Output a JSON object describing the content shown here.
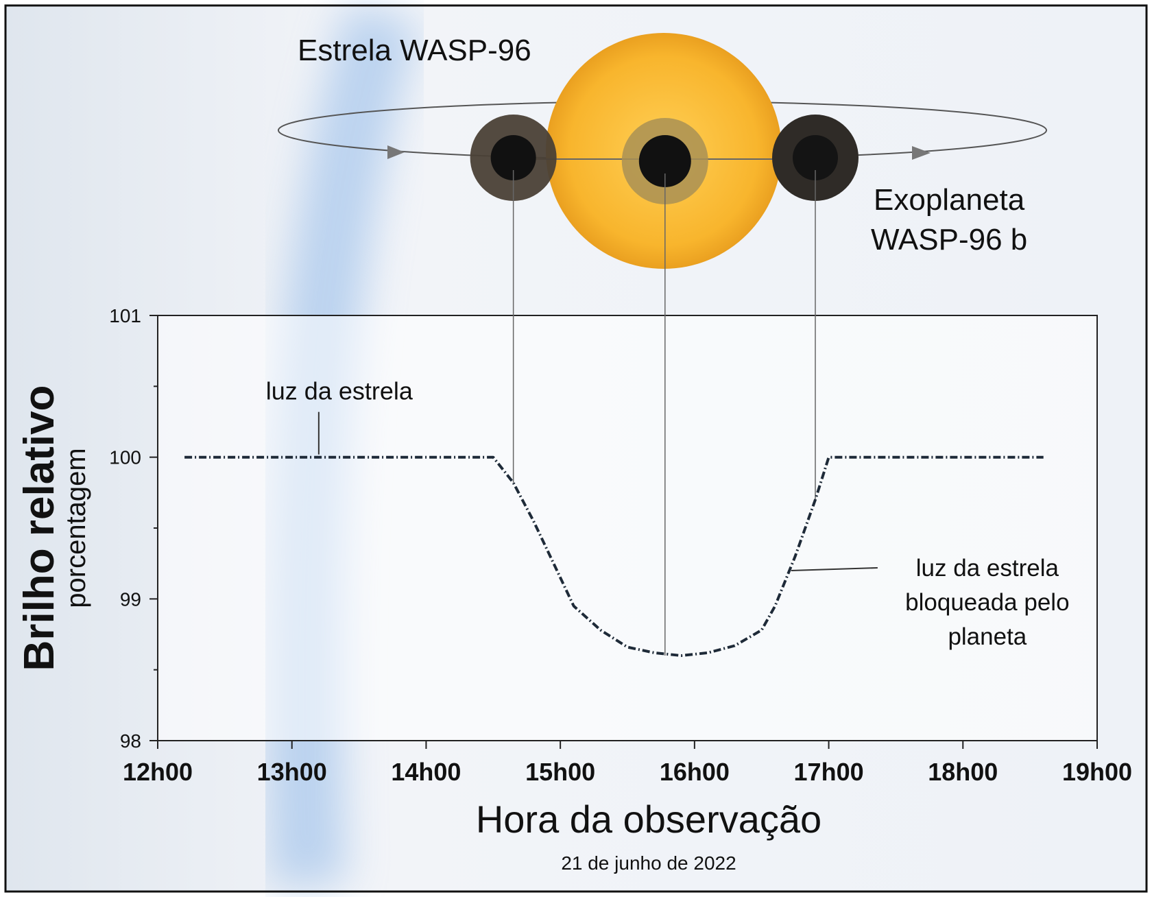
{
  "header": {
    "star_label": "Estrela WASP-96",
    "planet_label_line1": "Exoplaneta",
    "planet_label_line2": "WASP-96 b"
  },
  "colors": {
    "star": "#f8b52d",
    "planet": "#111111",
    "curve": "#1e2a38",
    "frame": "#111111",
    "glow": "#8fb8e8"
  },
  "chart_data": {
    "type": "line",
    "title": "",
    "xlabel": "Hora da observação",
    "x_sublabel": "21 de junho de 2022",
    "ylabel": "Brilho relativo",
    "ylabel_unit": "porcentagem",
    "xlim": [
      12,
      19
    ],
    "ylim": [
      98,
      101
    ],
    "x_tick_values": [
      12,
      13,
      14,
      15,
      16,
      17,
      18,
      19
    ],
    "x_tick_labels": [
      "12h00",
      "13h00",
      "14h00",
      "15h00",
      "16h00",
      "17h00",
      "18h00",
      "19h00"
    ],
    "y_tick_values": [
      98,
      99,
      100,
      101
    ],
    "y_tick_labels": [
      "98",
      "99",
      "100",
      "101"
    ],
    "y_minor_ticks": [
      98.5,
      99.5,
      100.5
    ],
    "grid": false,
    "series": [
      {
        "x": [
          12.2,
          12.5,
          12.8,
          13.1,
          13.4,
          13.7,
          14.0,
          14.3,
          14.5,
          14.65,
          14.8,
          14.95,
          15.1,
          15.3,
          15.5,
          15.7,
          15.9,
          16.1,
          16.3,
          16.5,
          16.6,
          16.75,
          16.9,
          17.0,
          17.3,
          17.6,
          17.9,
          18.2,
          18.6
        ],
        "y": [
          100.0,
          100.0,
          100.0,
          100.0,
          100.0,
          100.0,
          100.0,
          100.0,
          100.0,
          99.82,
          99.55,
          99.25,
          98.95,
          98.78,
          98.66,
          98.62,
          98.6,
          98.62,
          98.67,
          98.78,
          98.95,
          99.3,
          99.7,
          100.0,
          100.0,
          100.0,
          100.0,
          100.0,
          100.0
        ]
      }
    ],
    "annotations": [
      {
        "text": "luz da estrela",
        "x": 13.2,
        "y": 100.0
      },
      {
        "text": "luz da estrela",
        "text2": "bloqueada pelo",
        "text3": "planeta",
        "x": 16.7,
        "y": 99.2
      }
    ],
    "transit_positions": [
      {
        "x": 14.65,
        "y": 99.82
      },
      {
        "x": 15.78,
        "y": 98.6
      },
      {
        "x": 16.9,
        "y": 99.7
      }
    ]
  }
}
